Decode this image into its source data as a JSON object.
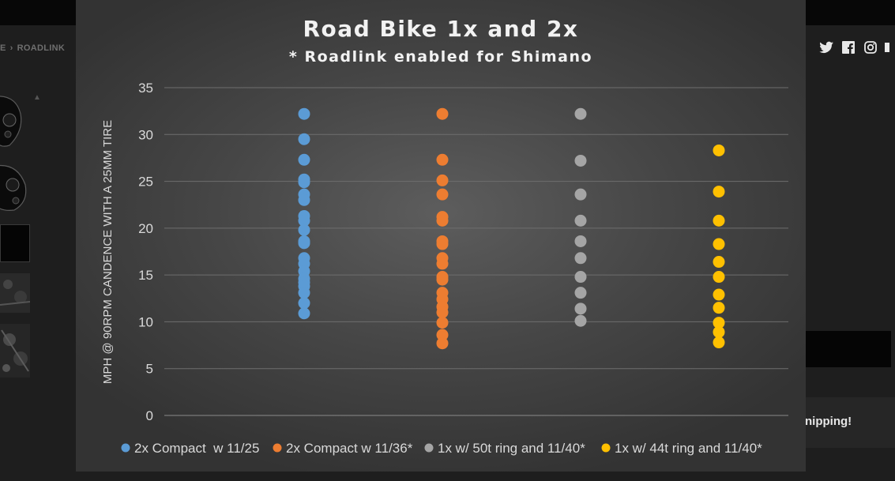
{
  "page": {
    "breadcrumb": {
      "partial": "E",
      "separator": "›",
      "current": "ROADLINK"
    },
    "shipping_text": "nipping!",
    "icons": [
      "twitter-icon",
      "facebook-icon",
      "instagram-icon"
    ]
  },
  "chart_data": {
    "type": "scatter",
    "title": "Road Bike 1x and 2x",
    "subtitle": "* Roadlink enabled for Shimano",
    "xlabel": "",
    "ylabel": "MPH @ 90RPM CANDENCE WITH A 25MM TIRE",
    "ylim": [
      0,
      35
    ],
    "yticks": [
      0,
      5,
      10,
      15,
      20,
      25,
      30,
      35
    ],
    "grid": true,
    "legend": "bottom",
    "series": [
      {
        "name": "2x Compact  w 11/25",
        "color": "#5b9bd5",
        "x": 1,
        "values": [
          32.2,
          29.5,
          27.3,
          25.2,
          24.9,
          23.6,
          23.0,
          21.3,
          20.8,
          19.8,
          18.6,
          18.4,
          16.8,
          16.2,
          15.4,
          14.6,
          14.2,
          13.8,
          13.1,
          12.0,
          10.9
        ]
      },
      {
        "name": "2x Compact w 11/36*",
        "color": "#ed7d31",
        "x": 2,
        "values": [
          32.2,
          27.3,
          25.1,
          23.6,
          21.2,
          20.8,
          18.6,
          18.3,
          16.8,
          16.2,
          14.8,
          14.5,
          13.1,
          12.4,
          11.6,
          11.0,
          9.9,
          8.6,
          7.7
        ]
      },
      {
        "name": "1x w/ 50t ring and 11/40*",
        "color": "#a5a5a5",
        "x": 3,
        "values": [
          32.2,
          27.2,
          23.6,
          20.8,
          18.6,
          16.8,
          14.8,
          13.1,
          11.4,
          10.1
        ]
      },
      {
        "name": "1x w/ 44t ring and 11/40*",
        "color": "#ffc000",
        "x": 4,
        "values": [
          28.3,
          23.9,
          20.8,
          18.3,
          16.4,
          14.8,
          12.9,
          11.5,
          9.9,
          8.9,
          7.8
        ]
      }
    ]
  }
}
